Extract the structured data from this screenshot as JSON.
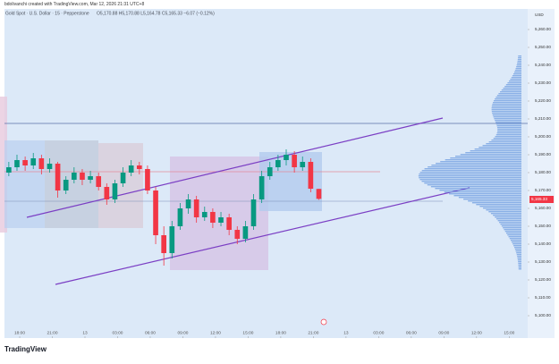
{
  "header": "bdolivanchi created with TradingView.com, Mar 12, 2026 21:31 UTC+8",
  "footer": "TradingView",
  "chart_data": {
    "type": "candlestick",
    "title": "Gold Spot · U.S. Dollar · 15 · Pepperstone",
    "ohlc_legend": "O5,170.88 H5,170.88 L5,164.78 C5,165.33 −6.07 (−0.12%)",
    "currency": "USD",
    "last_price_label": "5,165.33",
    "up_color": "#089981",
    "down_color": "#f23645",
    "x": [
      -1,
      -0.25,
      0.5,
      1.25,
      2,
      2.75,
      3.5,
      4.25,
      5,
      5.75,
      6.5,
      7.25,
      8,
      8.75,
      9.5,
      10.25,
      11,
      11.75,
      12.5,
      13.25,
      14,
      14.75,
      15.5,
      16.25,
      17,
      17.75,
      18.5,
      19.25,
      20,
      20.75,
      21.5,
      22.25,
      23,
      23.75,
      24.5,
      25.25,
      26,
      26.75,
      27.5
    ],
    "open": [
      5180,
      5183,
      5187,
      5184,
      5188,
      5182,
      5185,
      5170,
      5176,
      5180,
      5176,
      5178,
      5172,
      5165,
      5174,
      5180,
      5184,
      5182,
      5170,
      5145,
      5135,
      5150,
      5160,
      5165,
      5155,
      5158,
      5152,
      5155,
      5148,
      5143,
      5150,
      5165,
      5178,
      5183,
      5187,
      5190,
      5183,
      5186,
      5170.88
    ],
    "high": [
      5186,
      5190,
      5189,
      5191,
      5190,
      5188,
      5186,
      5178,
      5183,
      5182,
      5181,
      5180,
      5174,
      5176,
      5183,
      5187,
      5186,
      5184,
      5172,
      5150,
      5153,
      5163,
      5168,
      5167,
      5161,
      5160,
      5158,
      5157,
      5150,
      5153,
      5168,
      5181,
      5186,
      5190,
      5193,
      5192,
      5189,
      5188,
      5170.88
    ],
    "low": [
      5178,
      5181,
      5181,
      5182,
      5179,
      5180,
      5166,
      5168,
      5174,
      5173,
      5174,
      5170,
      5162,
      5163,
      5172,
      5178,
      5179,
      5168,
      5140,
      5128,
      5132,
      5148,
      5157,
      5152,
      5153,
      5149,
      5150,
      5145,
      5140,
      5141,
      5148,
      5163,
      5176,
      5181,
      5184,
      5180,
      5181,
      5169,
      5164.78
    ],
    "close": [
      5183,
      5187,
      5184,
      5188,
      5182,
      5185,
      5170,
      5176,
      5180,
      5176,
      5178,
      5172,
      5165,
      5174,
      5180,
      5184,
      5182,
      5170,
      5145,
      5135,
      5150,
      5160,
      5165,
      5155,
      5158,
      5152,
      5155,
      5148,
      5143,
      5150,
      5165,
      5178,
      5183,
      5187,
      5190,
      5183,
      5186,
      5171,
      5165.33
    ],
    "xlim": [
      -1.4,
      46.7
    ],
    "xticks": [
      {
        "value": 0,
        "label": "18:00"
      },
      {
        "value": 3,
        "label": "21:00"
      },
      {
        "value": 6,
        "label": "13"
      },
      {
        "value": 9,
        "label": "03:00"
      },
      {
        "value": 12,
        "label": "06:00"
      },
      {
        "value": 15,
        "label": "09:00"
      },
      {
        "value": 18,
        "label": "12:00"
      },
      {
        "value": 21,
        "label": "15:00"
      },
      {
        "value": 24,
        "label": "18:00"
      },
      {
        "value": 27,
        "label": "21:00"
      },
      {
        "value": 30,
        "label": "13"
      },
      {
        "value": 33,
        "label": "03:00"
      },
      {
        "value": 36,
        "label": "06:00"
      },
      {
        "value": 39,
        "label": "09:00"
      },
      {
        "value": 42,
        "label": "12:00"
      },
      {
        "value": 45,
        "label": "15:00"
      }
    ],
    "ylim": [
      5087.5,
      5271.5
    ],
    "yticks": [
      {
        "value": 5100,
        "label": "5,100.00"
      },
      {
        "value": 5110,
        "label": "5,110.00"
      },
      {
        "value": 5120,
        "label": "5,120.00"
      },
      {
        "value": 5130,
        "label": "5,130.00"
      },
      {
        "value": 5140,
        "label": "5,140.00"
      },
      {
        "value": 5150,
        "label": "5,150.00"
      },
      {
        "value": 5160,
        "label": "5,160.00"
      },
      {
        "value": 5170,
        "label": "5,170.00"
      },
      {
        "value": 5180,
        "label": "5,180.00"
      },
      {
        "value": 5190,
        "label": "5,190.00"
      },
      {
        "value": 5200,
        "label": "5,200.00"
      },
      {
        "value": 5210,
        "label": "5,210.00"
      },
      {
        "value": 5220,
        "label": "5,220.00"
      },
      {
        "value": 5230,
        "label": "5,230.00"
      },
      {
        "value": 5240,
        "label": "5,240.00"
      },
      {
        "value": 5250,
        "label": "5,250.00"
      },
      {
        "value": 5260,
        "label": "5,260.00"
      }
    ]
  }
}
